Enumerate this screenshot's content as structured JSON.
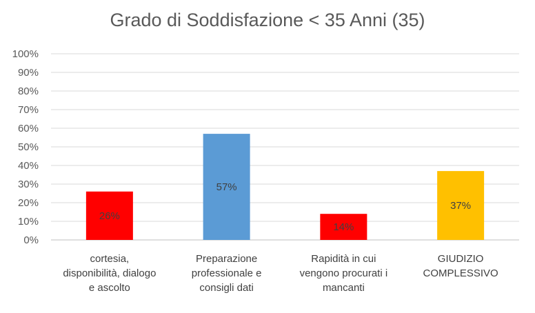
{
  "chart_data": {
    "type": "bar",
    "title": "Grado di Soddisfazione < 35 Anni (35)",
    "categories": [
      [
        "cortesia,",
        "disponibilità, dialogo",
        "e ascolto"
      ],
      [
        "Preparazione",
        "professionale e",
        "consigli dati"
      ],
      [
        "Rapidità in cui",
        "vengono procurati i",
        "mancanti"
      ],
      [
        "GIUDIZIO",
        "COMPLESSIVO"
      ]
    ],
    "values": [
      26,
      57,
      14,
      37
    ],
    "data_labels": [
      "26%",
      "57%",
      "14%",
      "37%"
    ],
    "bar_colors": [
      "#ff0000",
      "#5b9bd5",
      "#ff0000",
      "#ffc000"
    ],
    "ylim": [
      0,
      100
    ],
    "yticks": [
      "0%",
      "10%",
      "20%",
      "30%",
      "40%",
      "50%",
      "60%",
      "70%",
      "80%",
      "90%",
      "100%"
    ],
    "grid": true,
    "legend": "none",
    "xlabel": "",
    "ylabel": ""
  }
}
